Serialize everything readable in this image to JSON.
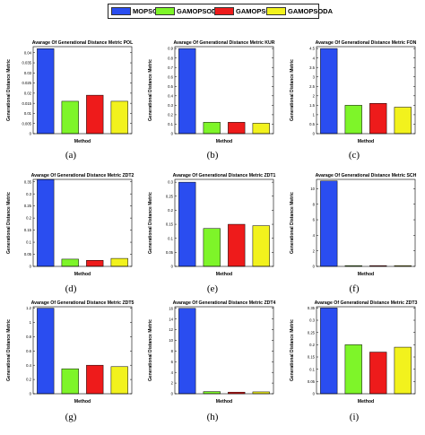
{
  "legend": {
    "items": [
      {
        "label": "MOPSO",
        "color": "#2a4df0"
      },
      {
        "label": "GAMOPSOD",
        "color": "#7ef529"
      },
      {
        "label": "GAMOPSOA",
        "color": "#ee1b1b"
      },
      {
        "label": "GAMOPSODA",
        "color": "#f2f21d"
      }
    ]
  },
  "captions": [
    "(a)",
    "(b)",
    "(c)",
    "(d)",
    "(e)",
    "(f)",
    "(g)",
    "(h)",
    "(i)"
  ],
  "chart_data": [
    {
      "type": "bar",
      "title": "Avarage Of Generational Distance Metric POL",
      "xlabel": "Method",
      "ylabel": "Generational Distance Metric",
      "categories": [
        "MOPSO",
        "GAMOPSOD",
        "GAMOPSOA",
        "GAMOPSODA"
      ],
      "values": [
        0.042,
        0.016,
        0.019,
        0.016
      ],
      "ylim": [
        0,
        0.043
      ],
      "yticks": [
        "0",
        "0.005",
        "0.01",
        "0.015",
        "0.02",
        "0.025",
        "0.03",
        "0.035",
        "0.04"
      ],
      "ytick_values": [
        0,
        0.005,
        0.01,
        0.015,
        0.02,
        0.025,
        0.03,
        0.035,
        0.04
      ]
    },
    {
      "type": "bar",
      "title": "Avarage Of Generational Distance Metric KUR",
      "xlabel": "Method",
      "ylabel": "Generational Distance Metric",
      "categories": [
        "MOPSO",
        "GAMOPSOD",
        "GAMOPSOA",
        "GAMOPSODA"
      ],
      "values": [
        0.9,
        0.12,
        0.12,
        0.11
      ],
      "ylim": [
        0,
        0.92
      ],
      "yticks": [
        "0",
        "0.1",
        "0.2",
        "0.3",
        "0.4",
        "0.5",
        "0.6",
        "0.7",
        "0.8",
        "0.9"
      ],
      "ytick_values": [
        0,
        0.1,
        0.2,
        0.3,
        0.4,
        0.5,
        0.6,
        0.7,
        0.8,
        0.9
      ]
    },
    {
      "type": "bar",
      "title": "Avarage Of Generational Distance Metric FON",
      "xlabel": "Method",
      "ylabel": "Generational Distance Metric",
      "categories": [
        "MOPSO",
        "GAMOPSOD",
        "GAMOPSOA",
        "GAMOPSODA"
      ],
      "values": [
        4.5,
        1.5,
        1.6,
        1.4
      ],
      "ylim": [
        0,
        4.6
      ],
      "yticks": [
        "0",
        "0.5",
        "1",
        "1.5",
        "2",
        "2.5",
        "3",
        "3.5",
        "4",
        "4.5"
      ],
      "ytick_values": [
        0,
        0.5,
        1,
        1.5,
        2,
        2.5,
        3,
        3.5,
        4,
        4.5
      ]
    },
    {
      "type": "bar",
      "title": "Avarage Of Generational Distance Metric ZDT2",
      "xlabel": "Method",
      "ylabel": "Generational Distance Metric",
      "categories": [
        "MOPSO",
        "GAMOPSOD",
        "GAMOPSOA",
        "GAMOPSODA"
      ],
      "values": [
        0.36,
        0.03,
        0.025,
        0.033
      ],
      "ylim": [
        0,
        0.36
      ],
      "yticks": [
        "0",
        "0.05",
        "0.1",
        "0.15",
        "0.2",
        "0.25",
        "0.3",
        "0.35"
      ],
      "ytick_values": [
        0,
        0.05,
        0.1,
        0.15,
        0.2,
        0.25,
        0.3,
        0.35
      ]
    },
    {
      "type": "bar",
      "title": "Avarage Of Generational Distance Metric ZDT1",
      "xlabel": "Method",
      "ylabel": "Generational Distance Metric",
      "categories": [
        "MOPSO",
        "GAMOPSOD",
        "GAMOPSOA",
        "GAMOPSODA"
      ],
      "values": [
        0.3,
        0.135,
        0.15,
        0.145
      ],
      "ylim": [
        0,
        0.31
      ],
      "yticks": [
        "0",
        "0.05",
        "0.1",
        "0.15",
        "0.2",
        "0.25",
        "0.3"
      ],
      "ytick_values": [
        0,
        0.05,
        0.1,
        0.15,
        0.2,
        0.25,
        0.3
      ]
    },
    {
      "type": "bar",
      "title": "Avarage Of Generational Distance Metric SCH",
      "xlabel": "Method",
      "ylabel": "Generational Distance Metric",
      "categories": [
        "MOPSO",
        "GAMOPSOD",
        "GAMOPSOA",
        "GAMOPSODA"
      ],
      "values": [
        11,
        0.1,
        0.1,
        0.1
      ],
      "ylim": [
        0,
        11.2
      ],
      "yticks": [
        "0",
        "2",
        "4",
        "6",
        "8",
        "10"
      ],
      "ytick_values": [
        0,
        2,
        4,
        6,
        8,
        10
      ]
    },
    {
      "type": "bar",
      "title": "Avarage Of Generational Distance Metric ZDT5",
      "xlabel": "Method",
      "ylabel": "Generational Distance Metric",
      "categories": [
        "MOPSO",
        "GAMOPSOD",
        "GAMOPSOA",
        "GAMOPSODA"
      ],
      "values": [
        1.2,
        0.35,
        0.4,
        0.38
      ],
      "ylim": [
        0,
        1.22
      ],
      "yticks": [
        "0",
        "0.2",
        "0.4",
        "0.6",
        "0.8",
        "1",
        "1.2"
      ],
      "ytick_values": [
        0,
        0.2,
        0.4,
        0.6,
        0.8,
        1,
        1.2
      ]
    },
    {
      "type": "bar",
      "title": "Avarage Of Generational Distance Metric ZDT4",
      "xlabel": "Method",
      "ylabel": "Generational Distance Metric",
      "categories": [
        "MOPSO",
        "GAMOPSOD",
        "GAMOPSOA",
        "GAMOPSODA"
      ],
      "values": [
        16,
        0.4,
        0.3,
        0.35
      ],
      "ylim": [
        0,
        16.3
      ],
      "yticks": [
        "0",
        "2",
        "4",
        "6",
        "8",
        "10",
        "12",
        "14",
        "16"
      ],
      "ytick_values": [
        0,
        2,
        4,
        6,
        8,
        10,
        12,
        14,
        16
      ]
    },
    {
      "type": "bar",
      "title": "Avarage Of Generational Distance Metric ZDT3",
      "xlabel": "Method",
      "ylabel": "Generational Distance Metric",
      "categories": [
        "MOPSO",
        "GAMOPSOD",
        "GAMOPSOA",
        "GAMOPSODA"
      ],
      "values": [
        0.35,
        0.2,
        0.17,
        0.19
      ],
      "ylim": [
        0,
        0.355
      ],
      "yticks": [
        "0",
        "0.05",
        "0.1",
        "0.15",
        "0.2",
        "0.25",
        "0.3",
        "0.35"
      ],
      "ytick_values": [
        0,
        0.05,
        0.1,
        0.15,
        0.2,
        0.25,
        0.3,
        0.35
      ]
    }
  ]
}
